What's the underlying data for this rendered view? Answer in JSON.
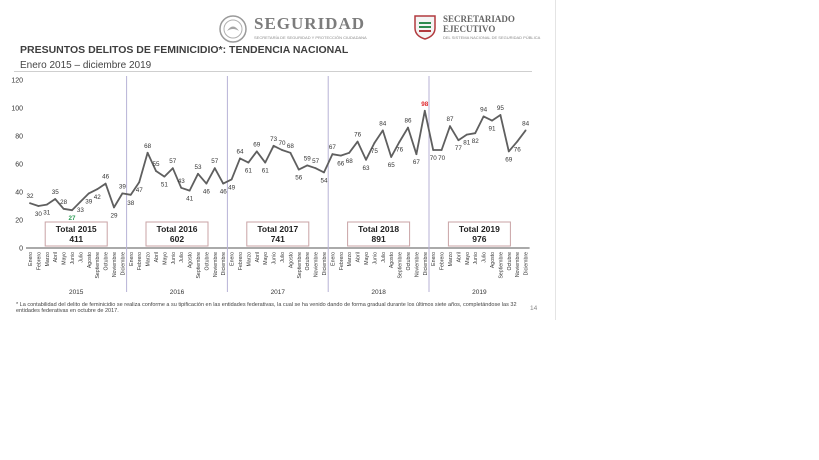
{
  "header": {
    "seguridad_title": "SEGURIDAD",
    "seguridad_subtitle": "SECRETARÍA DE SEGURIDAD Y PROTECCIÓN CIUDADANA",
    "secretariado_title_1": "SECRETARIADO",
    "secretariado_title_2": "EJECUTIVO",
    "secretariado_subtitle": "DEL SISTEMA NACIONAL DE SEGURIDAD PÚBLICA"
  },
  "slide": {
    "title": "PRESUNTOS DELITOS DE FEMINICIDIO*: TENDENCIA NACIONAL",
    "subtitle": "Enero 2015 – diciembre 2019",
    "footnote": "* La contabilidad del delito de feminicidio se realiza conforme a su tipificación en las entidades federativas, la cual se ha venido dando de forma gradual durante los últimos siete años, completándose las 32 entidades federativas en octubre de 2017.",
    "page_number": "14"
  },
  "chart_data": {
    "type": "line",
    "title": "PRESUNTOS DELITOS DE FEMINICIDIO*: TENDENCIA NACIONAL",
    "subtitle": "Enero 2015 – diciembre 2019",
    "xlabel": "",
    "ylabel": "",
    "ylim": [
      0,
      120
    ],
    "yticks": [
      0,
      20,
      40,
      60,
      80,
      100,
      120
    ],
    "grid": false,
    "months": [
      "Enero",
      "Febrero",
      "Marzo",
      "Abril",
      "Mayo",
      "Junio",
      "Julio",
      "Agosto",
      "Septiembre",
      "Octubre",
      "Noviembre",
      "Diciembre"
    ],
    "years": [
      "2015",
      "2016",
      "2017",
      "2018",
      "2019"
    ],
    "values": [
      32,
      30,
      31,
      35,
      28,
      27,
      33,
      39,
      42,
      46,
      29,
      39,
      38,
      47,
      68,
      55,
      51,
      57,
      43,
      41,
      53,
      46,
      57,
      46,
      49,
      64,
      61,
      69,
      61,
      73,
      70,
      68,
      56,
      59,
      57,
      54,
      67,
      66,
      68,
      76,
      63,
      75,
      84,
      65,
      76,
      86,
      67,
      98,
      70,
      70,
      87,
      77,
      81,
      82,
      94,
      91,
      95,
      69,
      76,
      84
    ],
    "highlights": {
      "min": {
        "index": 5,
        "value": 27,
        "color": "#2e9d56"
      },
      "max": {
        "index": 47,
        "value": 98,
        "color": "#e0282e"
      }
    },
    "totals": [
      {
        "label": "Total 2015",
        "value": "411"
      },
      {
        "label": "Total 2016",
        "value": "602"
      },
      {
        "label": "Total 2017",
        "value": "741"
      },
      {
        "label": "Total 2018",
        "value": "891"
      },
      {
        "label": "Total 2019",
        "value": "976"
      }
    ],
    "colors": {
      "line": "#5f5f5f",
      "year_divider": "#b7b2d6",
      "total_border": "#c9a3a6",
      "axis": "#555555"
    }
  }
}
